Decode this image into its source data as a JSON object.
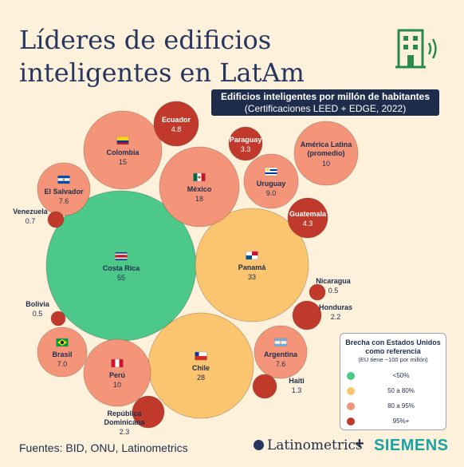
{
  "title": "Líderes de edificios inteligentes en LatAm",
  "subtitle": "Edificios inteligentes por millón de habitantes",
  "subtitle_note": "(Certificaciones LEED + EDGE, 2022)",
  "sources": "Fuentes: BID, ONU, Latinometrics",
  "brands": [
    "Latinometrics",
    "SIEMENS"
  ],
  "brands_separator": "+",
  "colors": {
    "background": "#fdf1dc",
    "lt50": "#4cc98a",
    "50to80": "#fbc46e",
    "80to95": "#f4957a",
    "95plus": "#c0392b",
    "title": "#27365f"
  },
  "legend": {
    "title": "Brecha con Estados Unidos como referencia",
    "subtitle": "(EU tiene ~100 por millón)",
    "items": [
      {
        "label": "<50%",
        "color": "#4cc98a"
      },
      {
        "label": "50 a 80%",
        "color": "#fbc46e"
      },
      {
        "label": "80 a 95%",
        "color": "#f4957a"
      },
      {
        "label": "95%+",
        "color": "#c0392b"
      }
    ]
  },
  "chart_data": {
    "type": "bubble",
    "title": "Edificios inteligentes por millón de habitantes",
    "unit": "edificios por millón de habitantes",
    "points": [
      {
        "name": "Costa Rica",
        "value_label": "55",
        "value": 55,
        "category": "<50%",
        "flag": "costa-rica-flag"
      },
      {
        "name": "Panamá",
        "value_label": "33",
        "value": 33,
        "category": "50 a 80%",
        "flag": "panama-flag"
      },
      {
        "name": "Chile",
        "value_label": "28",
        "value": 28,
        "category": "50 a 80%",
        "flag": "chile-flag"
      },
      {
        "name": "México",
        "value_label": "18",
        "value": 18,
        "category": "80 a 95%",
        "flag": "mexico-flag"
      },
      {
        "name": "Colombia",
        "value_label": "15",
        "value": 15,
        "category": "80 a 95%",
        "flag": "colombia-flag"
      },
      {
        "name": "Perú",
        "value_label": "10",
        "value": 10,
        "category": "80 a 95%",
        "flag": "peru-flag"
      },
      {
        "name": "América Latina (promedio)",
        "value_label": "10",
        "value": 10,
        "category": "80 a 95%",
        "flag": ""
      },
      {
        "name": "Uruguay",
        "value_label": "9.0",
        "value": 9.0,
        "category": "80 a 95%",
        "flag": "uruguay-flag"
      },
      {
        "name": "El Salvador",
        "value_label": "7.6",
        "value": 7.6,
        "category": "80 a 95%",
        "flag": "el-salvador-flag"
      },
      {
        "name": "Argentina",
        "value_label": "7.6",
        "value": 7.6,
        "category": "80 a 95%",
        "flag": "argentina-flag"
      },
      {
        "name": "Brasil",
        "value_label": "7.0",
        "value": 7.0,
        "category": "80 a 95%",
        "flag": "brazil-flag"
      },
      {
        "name": "Ecuador",
        "value_label": "4.8",
        "value": 4.8,
        "category": "95%+",
        "flag": ""
      },
      {
        "name": "Guatemala",
        "value_label": "4.3",
        "value": 4.3,
        "category": "95%+",
        "flag": ""
      },
      {
        "name": "Paraguay",
        "value_label": "3.3",
        "value": 3.3,
        "category": "95%+",
        "flag": ""
      },
      {
        "name": "República Dominicana",
        "value_label": "2.3",
        "value": 2.3,
        "category": "95%+",
        "flag": ""
      },
      {
        "name": "Honduras",
        "value_label": "2.2",
        "value": 2.2,
        "category": "95%+",
        "flag": ""
      },
      {
        "name": "Haiti",
        "value_label": "1.3",
        "value": 1.3,
        "category": "95%+",
        "flag": ""
      },
      {
        "name": "Venezuela",
        "value_label": "0.7",
        "value": 0.7,
        "category": "95%+",
        "flag": ""
      },
      {
        "name": "Nicaragua",
        "value_label": "0.5",
        "value": 0.5,
        "category": "95%+",
        "flag": ""
      },
      {
        "name": "Bolivia",
        "value_label": "0.5",
        "value": 0.5,
        "category": "95%+",
        "flag": ""
      }
    ]
  }
}
